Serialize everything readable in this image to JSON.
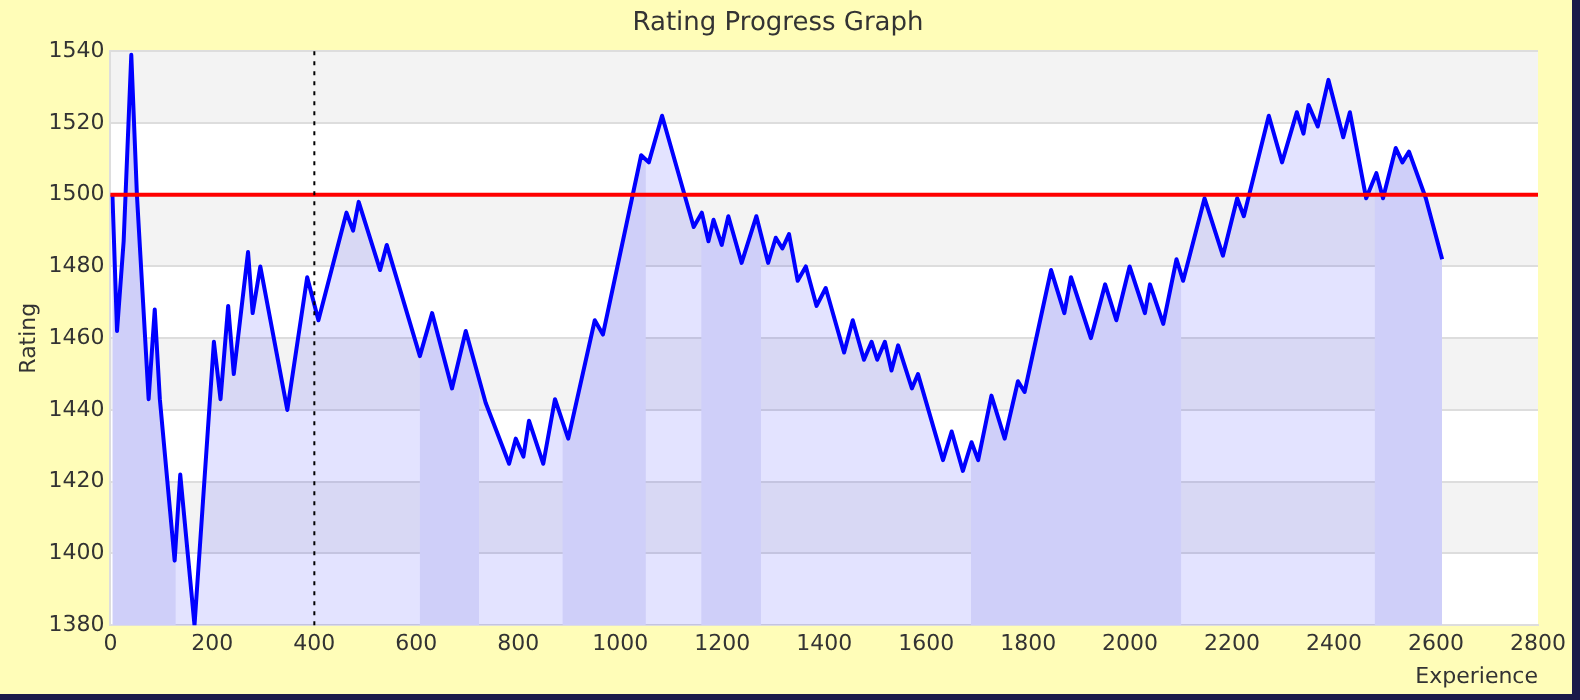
{
  "chart_data": {
    "type": "area",
    "title": "Rating Progress Graph",
    "xlabel": "Experience",
    "ylabel": "Rating",
    "series": [
      {
        "color": "#0000ff",
        "x": [
          4,
          13,
          26,
          41,
          52,
          75,
          87,
          97,
          126,
          137,
          165,
          203,
          216,
          231,
          242,
          270,
          279,
          294,
          347,
          386,
          408,
          463,
          476,
          487,
          529,
          542,
          607,
          631,
          670,
          697,
          736,
          782,
          795,
          810,
          821,
          849,
          872,
          898,
          950,
          966,
          1041,
          1056,
          1082,
          1144,
          1160,
          1173,
          1183,
          1199,
          1212,
          1238,
          1267,
          1290,
          1305,
          1318,
          1331,
          1348,
          1364,
          1385,
          1403,
          1439,
          1456,
          1478,
          1493,
          1504,
          1519,
          1532,
          1545,
          1572,
          1584,
          1633,
          1650,
          1672,
          1689,
          1702,
          1728,
          1754,
          1780,
          1793,
          1845,
          1871,
          1884,
          1923,
          1951,
          1973,
          1999,
          2029,
          2039,
          2065,
          2091,
          2104,
          2146,
          2182,
          2210,
          2223,
          2272,
          2298,
          2327,
          2340,
          2350,
          2368,
          2389,
          2418,
          2431,
          2463,
          2483,
          2496,
          2521,
          2534,
          2547,
          2580,
          2612
        ],
        "values": [
          1500,
          1462,
          1487,
          1539,
          1500,
          1443,
          1468,
          1443,
          1398,
          1422,
          1380,
          1459,
          1443,
          1469,
          1450,
          1484,
          1467,
          1480,
          1440,
          1477,
          1465,
          1495,
          1490,
          1498,
          1479,
          1486,
          1455,
          1467,
          1446,
          1462,
          1442,
          1425,
          1432,
          1427,
          1437,
          1425,
          1443,
          1432,
          1465,
          1461,
          1511,
          1509,
          1522,
          1491,
          1495,
          1487,
          1493,
          1486,
          1494,
          1481,
          1494,
          1481,
          1488,
          1485,
          1489,
          1476,
          1480,
          1469,
          1474,
          1456,
          1465,
          1454,
          1459,
          1454,
          1459,
          1451,
          1458,
          1446,
          1450,
          1426,
          1434,
          1423,
          1431,
          1426,
          1444,
          1432,
          1448,
          1445,
          1479,
          1467,
          1477,
          1460,
          1475,
          1465,
          1480,
          1467,
          1475,
          1464,
          1482,
          1476,
          1499,
          1483,
          1499,
          1494,
          1522,
          1509,
          1523,
          1517,
          1525,
          1519,
          1532,
          1516,
          1523,
          1499,
          1506,
          1499,
          1513,
          1509,
          1512,
          1499,
          1482
        ]
      }
    ],
    "xlim": [
      0,
      2800
    ],
    "xticks": [
      0,
      200,
      400,
      600,
      800,
      1000,
      1200,
      1400,
      1600,
      1800,
      2000,
      2200,
      2400,
      2600,
      2800
    ],
    "ylim": [
      1380,
      1540
    ],
    "yticks": [
      1380,
      1400,
      1420,
      1440,
      1460,
      1480,
      1500,
      1520,
      1540
    ],
    "grid": "y",
    "legend": false,
    "marker": "none",
    "line_style": "solid",
    "ref_lines": [
      {
        "axis": "y",
        "value": 1500,
        "color": "#ff0000",
        "line_style": "solid"
      },
      {
        "axis": "x",
        "value": 400,
        "color": "#000000",
        "line_style": "dotted"
      }
    ],
    "bands": [
      {
        "axis": "x",
        "from": 0,
        "to": 128,
        "color": "#e9e9f9"
      },
      {
        "axis": "x",
        "from": 607,
        "to": 723,
        "color": "#e9e9f9"
      },
      {
        "axis": "x",
        "from": 887,
        "to": 1050,
        "color": "#e9e9f9"
      },
      {
        "axis": "x",
        "from": 1159,
        "to": 1276,
        "color": "#e9e9f9"
      },
      {
        "axis": "x",
        "from": 1688,
        "to": 2100,
        "color": "#e9e9f9"
      },
      {
        "axis": "x",
        "from": 2480,
        "to": 2612,
        "color": "#e9e9f9"
      }
    ]
  }
}
